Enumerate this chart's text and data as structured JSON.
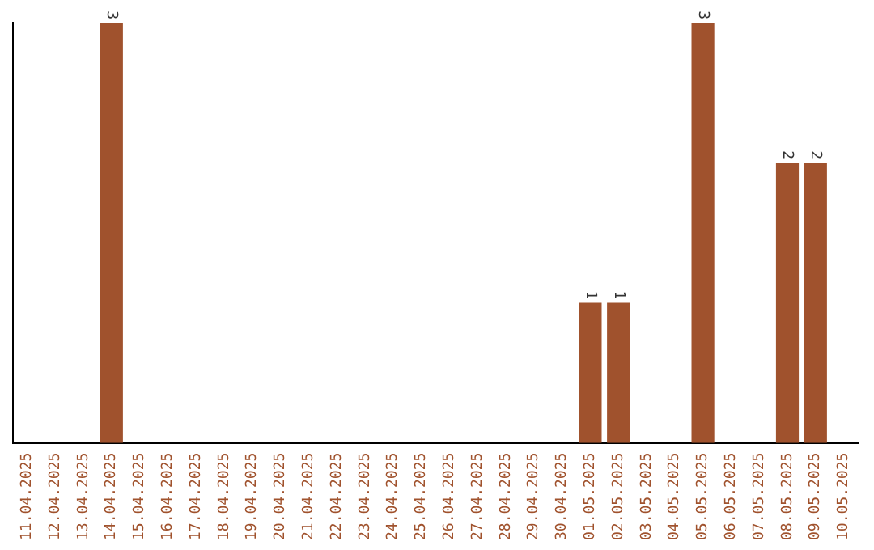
{
  "chart_data": {
    "type": "bar",
    "categories": [
      "11.04.2025",
      "12.04.2025",
      "13.04.2025",
      "14.04.2025",
      "15.04.2025",
      "16.04.2025",
      "17.04.2025",
      "18.04.2025",
      "19.04.2025",
      "20.04.2025",
      "21.04.2025",
      "22.04.2025",
      "23.04.2025",
      "24.04.2025",
      "25.04.2025",
      "26.04.2025",
      "27.04.2025",
      "28.04.2025",
      "29.04.2025",
      "30.04.2025",
      "01.05.2025",
      "02.05.2025",
      "03.05.2025",
      "04.05.2025",
      "05.05.2025",
      "06.05.2025",
      "07.05.2025",
      "08.05.2025",
      "09.05.2025",
      "10.05.2025"
    ],
    "values": [
      0,
      0,
      0,
      3,
      0,
      0,
      0,
      0,
      0,
      0,
      0,
      0,
      0,
      0,
      0,
      0,
      0,
      0,
      0,
      0,
      1,
      1,
      0,
      0,
      3,
      0,
      0,
      2,
      2,
      0
    ],
    "color": "#a0522d",
    "value_labels": [
      null,
      null,
      null,
      "3",
      null,
      null,
      null,
      null,
      null,
      null,
      null,
      null,
      null,
      null,
      null,
      null,
      null,
      null,
      null,
      null,
      "1",
      "1",
      null,
      null,
      "3",
      null,
      null,
      "2",
      "2",
      null
    ]
  }
}
